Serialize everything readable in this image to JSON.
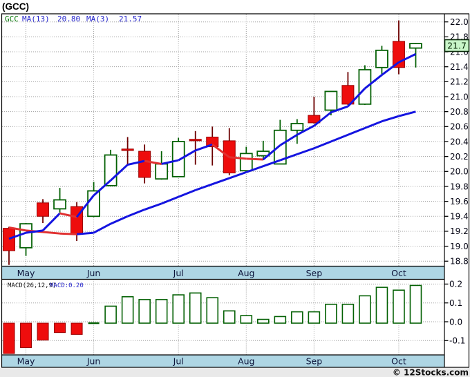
{
  "title": "(GCC)",
  "footer": {
    "credit": "© 12Stocks.com"
  },
  "main_legend": {
    "symbol": "GCC",
    "ma13_label": "MA(13)",
    "ma13_value": "20.80",
    "ma3_label": "MA(3)",
    "ma3_value": "21.57"
  },
  "macd_legend": {
    "label": "MACD(26,12,9)",
    "value_label": "MACD:0.20"
  },
  "price_badge": "21.7",
  "colors": {
    "red_fill": "#ee0d0d",
    "red_stroke": "#990000",
    "wick_red": "#6d0000",
    "green_stroke": "#046104",
    "green_fill": "#ffffff",
    "ma_blue": "#1414e0",
    "ma_red": "#e03030",
    "grid": "#9e9e9e",
    "frame": "#000000",
    "strip_bg": "#aed6e4",
    "strip_text": "#0b1238",
    "axis_text": "#000010",
    "legend_green": "#007700",
    "legend_blue": "#2626cc",
    "macd_label_black": "#111111",
    "badge_bg": "#c8f5c8",
    "badge_border": "#0b2b0b",
    "footer_bg": "#e9e9e9",
    "footer_text": "#111111"
  },
  "chart_data": [
    {
      "type": "candlestick",
      "title": "GCC weekly price",
      "panel": "price",
      "ylim": [
        18.74,
        22.05
      ],
      "ytick_labels": [
        "22.0",
        "21.8",
        "21.6",
        "21.4",
        "21.2",
        "21.0",
        "20.8",
        "20.6",
        "20.4",
        "20.2",
        "20.0",
        "19.8",
        "19.6",
        "19.4",
        "19.2",
        "19.0",
        "18.8"
      ],
      "ytick_values": [
        22.0,
        21.8,
        21.6,
        21.4,
        21.2,
        21.0,
        20.8,
        20.6,
        20.4,
        20.2,
        20.0,
        19.8,
        19.6,
        19.4,
        19.2,
        19.0,
        18.8
      ],
      "grid": true,
      "last_price": 21.7,
      "x_month_ticks": [
        {
          "label": "May",
          "candle_index": 1
        },
        {
          "label": "Jun",
          "candle_index": 5
        },
        {
          "label": "Jul",
          "candle_index": 10
        },
        {
          "label": "Aug",
          "candle_index": 14
        },
        {
          "label": "Sep",
          "candle_index": 18
        },
        {
          "label": "Oct",
          "candle_index": 23
        }
      ],
      "candles": [
        {
          "o": 19.24,
          "h": 19.26,
          "l": 18.75,
          "c": 18.94,
          "color": "red"
        },
        {
          "o": 18.98,
          "h": 19.31,
          "l": 18.87,
          "c": 19.3,
          "color": "green"
        },
        {
          "o": 19.58,
          "h": 19.63,
          "l": 19.31,
          "c": 19.4,
          "color": "red"
        },
        {
          "o": 19.5,
          "h": 19.78,
          "l": 19.45,
          "c": 19.62,
          "color": "green"
        },
        {
          "o": 19.53,
          "h": 19.59,
          "l": 19.07,
          "c": 19.16,
          "color": "red"
        },
        {
          "o": 19.4,
          "h": 19.86,
          "l": 19.39,
          "c": 19.74,
          "color": "green"
        },
        {
          "o": 19.81,
          "h": 20.29,
          "l": 19.8,
          "c": 20.22,
          "color": "green"
        },
        {
          "o": 20.3,
          "h": 20.46,
          "l": 20.09,
          "c": 20.28,
          "color": "red"
        },
        {
          "o": 20.27,
          "h": 20.36,
          "l": 19.84,
          "c": 19.92,
          "color": "red"
        },
        {
          "o": 19.9,
          "h": 20.27,
          "l": 19.89,
          "c": 20.1,
          "color": "green"
        },
        {
          "o": 19.93,
          "h": 20.45,
          "l": 19.93,
          "c": 20.4,
          "color": "green"
        },
        {
          "o": 20.43,
          "h": 20.54,
          "l": 20.09,
          "c": 20.41,
          "color": "red"
        },
        {
          "o": 20.46,
          "h": 20.6,
          "l": 20.08,
          "c": 20.33,
          "color": "red"
        },
        {
          "o": 20.41,
          "h": 20.58,
          "l": 19.95,
          "c": 19.98,
          "color": "red"
        },
        {
          "o": 20.01,
          "h": 20.33,
          "l": 20.0,
          "c": 20.24,
          "color": "green"
        },
        {
          "o": 20.21,
          "h": 20.41,
          "l": 20.15,
          "c": 20.27,
          "color": "green"
        },
        {
          "o": 20.1,
          "h": 20.69,
          "l": 20.1,
          "c": 20.55,
          "color": "green"
        },
        {
          "o": 20.55,
          "h": 20.7,
          "l": 20.37,
          "c": 20.64,
          "color": "green"
        },
        {
          "o": 20.75,
          "h": 21.0,
          "l": 20.64,
          "c": 20.65,
          "color": "red"
        },
        {
          "o": 20.82,
          "h": 21.07,
          "l": 20.75,
          "c": 21.07,
          "color": "green"
        },
        {
          "o": 21.15,
          "h": 21.33,
          "l": 20.89,
          "c": 20.9,
          "color": "red"
        },
        {
          "o": 20.9,
          "h": 21.42,
          "l": 20.89,
          "c": 21.36,
          "color": "green"
        },
        {
          "o": 21.39,
          "h": 21.68,
          "l": 21.3,
          "c": 21.62,
          "color": "green"
        },
        {
          "o": 21.74,
          "h": 22.02,
          "l": 21.3,
          "c": 21.39,
          "color": "red"
        },
        {
          "o": 21.65,
          "h": 21.72,
          "l": 21.39,
          "c": 21.71,
          "color": "green"
        }
      ],
      "ma3": {
        "label": "MA(3)",
        "current": 21.57,
        "values": [
          19.1,
          19.18,
          19.21,
          19.44,
          19.39,
          19.68,
          19.88,
          20.09,
          20.14,
          20.1,
          20.15,
          20.28,
          20.36,
          20.19,
          20.17,
          20.16,
          20.35,
          20.49,
          20.61,
          20.79,
          20.87,
          21.11,
          21.29,
          21.46,
          21.57
        ]
      },
      "ma13": {
        "label": "MA(13)",
        "current": 20.8,
        "values": [
          19.25,
          19.21,
          19.19,
          19.17,
          19.16,
          19.18,
          19.3,
          19.4,
          19.49,
          19.57,
          19.66,
          19.75,
          19.83,
          19.91,
          19.99,
          20.07,
          20.15,
          20.23,
          20.31,
          20.4,
          20.49,
          20.58,
          20.67,
          20.74,
          20.8
        ]
      }
    },
    {
      "type": "bar",
      "title": "MACD(26,12,9)",
      "panel": "macd",
      "current": 0.2,
      "ylim": [
        -0.18,
        0.23
      ],
      "ytick_labels": [
        "0.2",
        "0.1",
        "0.0",
        "-0.1"
      ],
      "ytick_values": [
        0.2,
        0.1,
        0.0,
        -0.1
      ],
      "grid": true,
      "values": [
        -0.17,
        -0.13,
        -0.09,
        -0.05,
        -0.06,
        0.0,
        0.09,
        0.14,
        0.125,
        0.125,
        0.15,
        0.16,
        0.135,
        0.065,
        0.04,
        0.02,
        0.035,
        0.06,
        0.06,
        0.1,
        0.1,
        0.145,
        0.19,
        0.175,
        0.2
      ]
    }
  ]
}
